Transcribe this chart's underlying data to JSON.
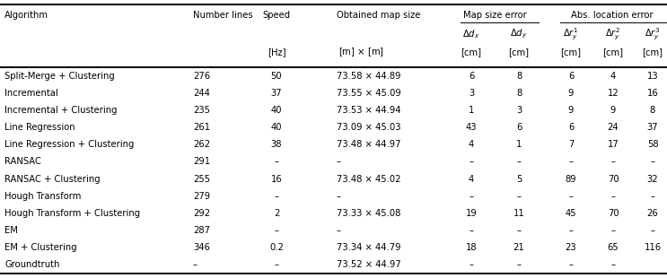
{
  "rows": [
    [
      "Split-Merge + Clustering",
      "276",
      "50",
      "73.58 × 44.89",
      "6",
      "8",
      "6",
      "4",
      "13"
    ],
    [
      "Incremental",
      "244",
      "37",
      "73.55 × 45.09",
      "3",
      "8",
      "9",
      "12",
      "16"
    ],
    [
      "Incremental + Clustering",
      "235",
      "40",
      "73.53 × 44.94",
      "1",
      "3",
      "9",
      "9",
      "8"
    ],
    [
      "Line Regression",
      "261",
      "40",
      "73.09 × 45.03",
      "43",
      "6",
      "6",
      "24",
      "37"
    ],
    [
      "Line Regression + Clustering",
      "262",
      "38",
      "73.48 × 44.97",
      "4",
      "1",
      "7",
      "17",
      "58"
    ],
    [
      "RANSAC",
      "291",
      "–",
      "–",
      "–",
      "–",
      "–",
      "–",
      "–"
    ],
    [
      "RANSAC + Clustering",
      "255",
      "16",
      "73.48 × 45.02",
      "4",
      "5",
      "89",
      "70",
      "32"
    ],
    [
      "Hough Transform",
      "279",
      "–",
      "–",
      "–",
      "–",
      "–",
      "–",
      "–"
    ],
    [
      "Hough Transform + Clustering",
      "292",
      "2",
      "73.33 × 45.08",
      "19",
      "11",
      "45",
      "70",
      "26"
    ],
    [
      "EM",
      "287",
      "–",
      "–",
      "–",
      "–",
      "–",
      "–",
      "–"
    ],
    [
      "EM + Clustering",
      "346",
      "0.2",
      "73.34 × 44.79",
      "18",
      "21",
      "23",
      "65",
      "116"
    ],
    [
      "Groundtruth",
      "–",
      "–",
      "73.52 × 44.97",
      "–",
      "–",
      "–",
      "–",
      ""
    ]
  ],
  "background_color": "#ffffff",
  "line_color": "#000000",
  "text_color": "#000000",
  "font_size": 7.2
}
